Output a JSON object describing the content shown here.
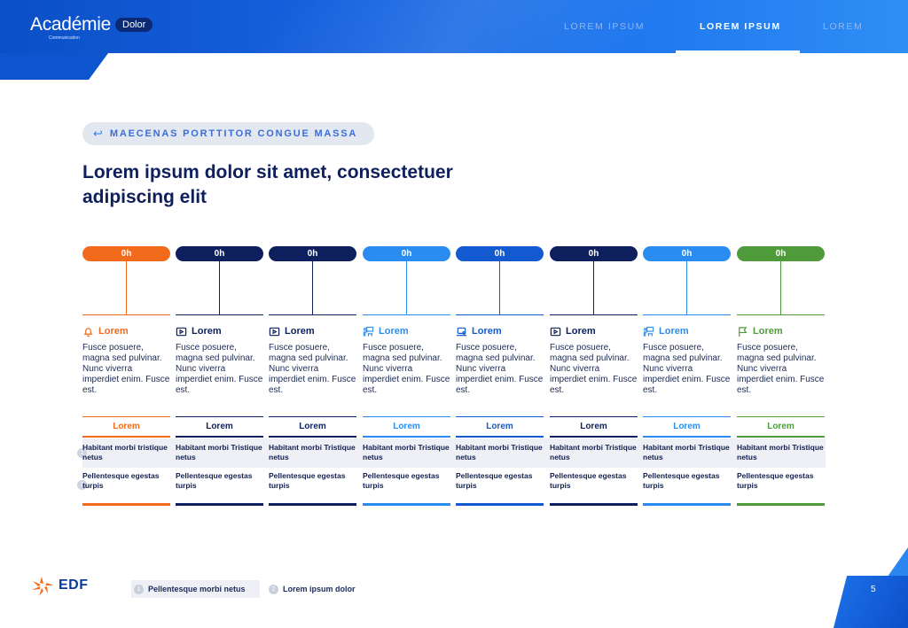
{
  "header": {
    "logo": "Académie",
    "logo_sub": "Communication",
    "badge": "Dolor",
    "nav": [
      "LOREM IPSUM",
      "LOREM IPSUM",
      "LOREM"
    ]
  },
  "section_tag": "MAECENAS PORTTITOR CONGUE MASSA",
  "title": "Lorem ipsum dolor sit amet, consectetuer adipiscing elit",
  "columns": [
    {
      "time": "0h",
      "icon": "bell-icon",
      "heading": "Lorem",
      "desc": "Fusce posuere, magna sed pulvinar. Nunc viverra imperdiet enim. Fusce est.",
      "sub": "Lorem",
      "row1": "Habitant morbi tristique netus",
      "row2": "Pellentesque egestas turpis",
      "color": "#f26b1d"
    },
    {
      "time": "0h",
      "icon": "video-icon",
      "heading": "Lorem",
      "desc": "Fusce posuere, magna sed pulvinar. Nunc viverra imperdiet enim. Fusce est.",
      "sub": "Lorem",
      "row1": "Habitant morbi Tristique netus",
      "row2": "Pellentesque egestas turpis",
      "color": "#0e1f5e"
    },
    {
      "time": "0h",
      "icon": "video-icon",
      "heading": "Lorem",
      "desc": "Fusce posuere, magna sed pulvinar. Nunc viverra imperdiet enim. Fusce est.",
      "sub": "Lorem",
      "row1": "Habitant morbi Tristique netus",
      "row2": "Pellentesque egestas turpis",
      "color": "#0e1f5e"
    },
    {
      "time": "0h",
      "icon": "classroom-icon",
      "heading": "Lorem",
      "desc": "Fusce posuere, magna sed pulvinar. Nunc viverra imperdiet enim. Fusce est.",
      "sub": "Lorem",
      "row1": "Habitant morbi Tristique netus",
      "row2": "Pellentesque egestas turpis",
      "color": "#2a8cf0"
    },
    {
      "time": "0h",
      "icon": "laptop-icon",
      "heading": "Lorem",
      "desc": "Fusce posuere, magna sed pulvinar. Nunc viverra imperdiet enim. Fusce est.",
      "sub": "Lorem",
      "row1": "Habitant morbi Tristique netus",
      "row2": "Pellentesque egestas turpis",
      "color": "#1359d0"
    },
    {
      "time": "0h",
      "icon": "video-icon",
      "heading": "Lorem",
      "desc": "Fusce posuere, magna sed pulvinar. Nunc viverra imperdiet enim. Fusce est.",
      "sub": "Lorem",
      "row1": "Habitant morbi Tristique netus",
      "row2": "Pellentesque egestas turpis",
      "color": "#0e1f5e"
    },
    {
      "time": "0h",
      "icon": "classroom-icon",
      "heading": "Lorem",
      "desc": "Fusce posuere, magna sed pulvinar. Nunc viverra imperdiet enim. Fusce est.",
      "sub": "Lorem",
      "row1": "Habitant morbi Tristique netus",
      "row2": "Pellentesque egestas turpis",
      "color": "#2a8cf0"
    },
    {
      "time": "0h",
      "icon": "flag-icon",
      "heading": "Lorem",
      "desc": "Fusce posuere, magna sed pulvinar. Nunc viverra imperdiet enim. Fusce est.",
      "sub": "Lorem",
      "row1": "Habitant morbi Tristique netus",
      "row2": "Pellentesque egestas turpis",
      "color": "#4f9a3a"
    }
  ],
  "row_numbers": [
    "1",
    "2"
  ],
  "footer": {
    "brand": "EDF",
    "legend": [
      {
        "num": "1",
        "label": "Pellentesque morbi netus"
      },
      {
        "num": "2",
        "label": "Lorem ipsum dolor"
      }
    ],
    "page": "5"
  }
}
